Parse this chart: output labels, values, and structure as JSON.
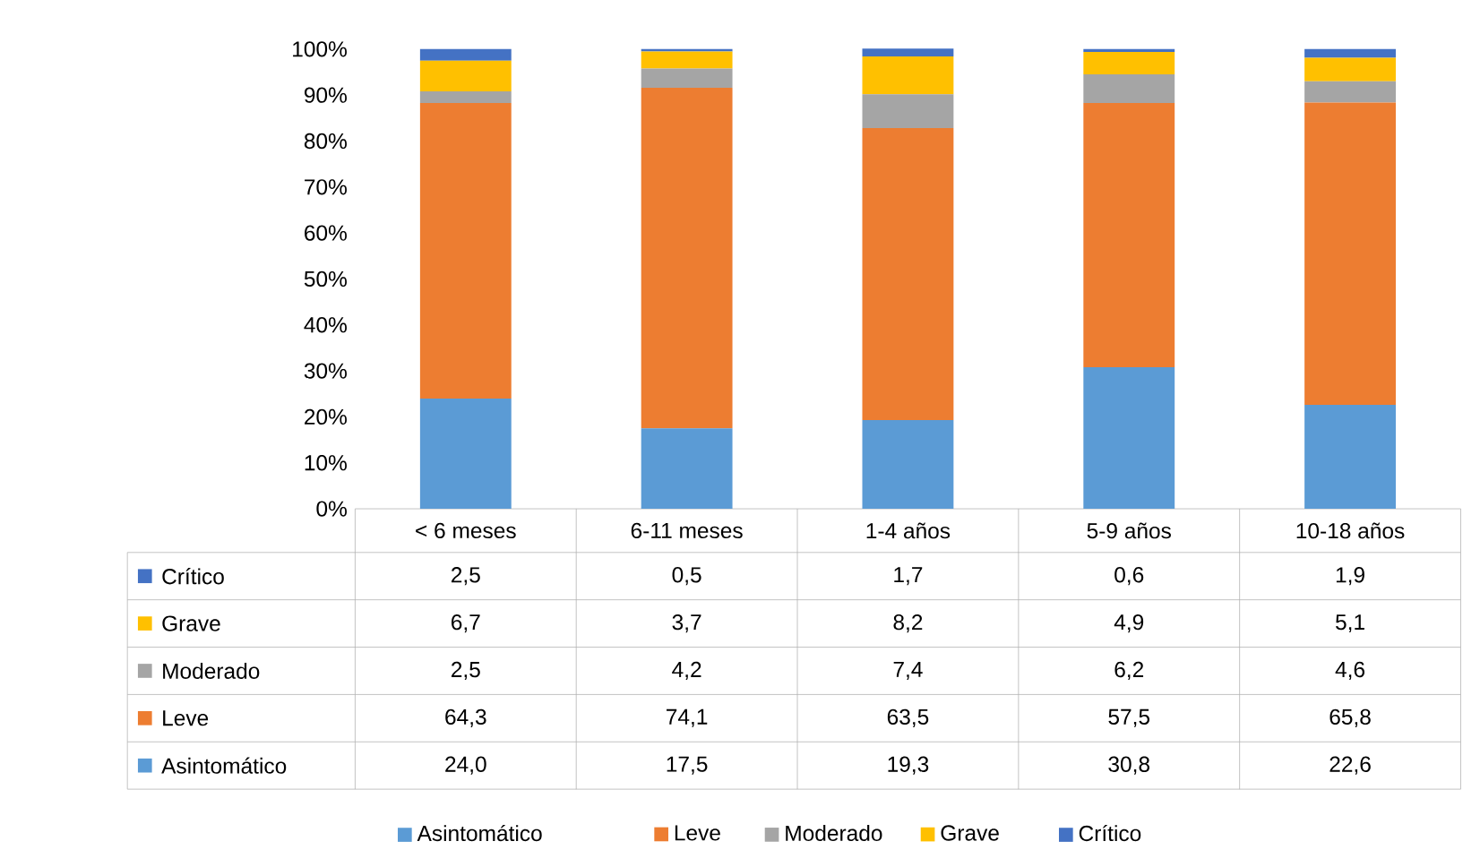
{
  "chart_data": {
    "type": "bar",
    "stacked": true,
    "categories": [
      "< 6 meses",
      "6-11 meses",
      "1-4 años",
      "5-9 años",
      "10-18 años"
    ],
    "series": [
      {
        "name": "Asintomático",
        "color": "#5b9bd5",
        "values": [
          24.0,
          17.5,
          19.3,
          30.8,
          22.6
        ],
        "value_labels": [
          "24,0",
          "17,5",
          "19,3",
          "30,8",
          "22,6"
        ]
      },
      {
        "name": "Leve",
        "color": "#ed7d31",
        "values": [
          64.3,
          74.1,
          63.5,
          57.5,
          65.8
        ],
        "value_labels": [
          "64,3",
          "74,1",
          "63,5",
          "57,5",
          "65,8"
        ]
      },
      {
        "name": "Moderado",
        "color": "#a5a5a5",
        "values": [
          2.5,
          4.2,
          7.4,
          6.2,
          4.6
        ],
        "value_labels": [
          "2,5",
          "4,2",
          "7,4",
          "6,2",
          "4,6"
        ]
      },
      {
        "name": "Grave",
        "color": "#ffc000",
        "values": [
          6.7,
          3.7,
          8.2,
          4.9,
          5.1
        ],
        "value_labels": [
          "6,7",
          "3,7",
          "8,2",
          "4,9",
          "5,1"
        ]
      },
      {
        "name": "Crítico",
        "color": "#4472c4",
        "values": [
          2.5,
          0.5,
          1.7,
          0.6,
          1.9
        ],
        "value_labels": [
          "2,5",
          "0,5",
          "1,7",
          "0,6",
          "1,9"
        ]
      }
    ],
    "ylim": [
      0,
      100
    ],
    "yticks": [
      {
        "value": 0,
        "label": "0%"
      },
      {
        "value": 10,
        "label": "10%"
      },
      {
        "value": 20,
        "label": "20%"
      },
      {
        "value": 30,
        "label": "30%"
      },
      {
        "value": 40,
        "label": "40%"
      },
      {
        "value": 50,
        "label": "50%"
      },
      {
        "value": 60,
        "label": "60%"
      },
      {
        "value": 70,
        "label": "70%"
      },
      {
        "value": 80,
        "label": "80%"
      },
      {
        "value": 90,
        "label": "90%"
      },
      {
        "value": 100,
        "label": "100%"
      }
    ],
    "legend": "bottom"
  }
}
